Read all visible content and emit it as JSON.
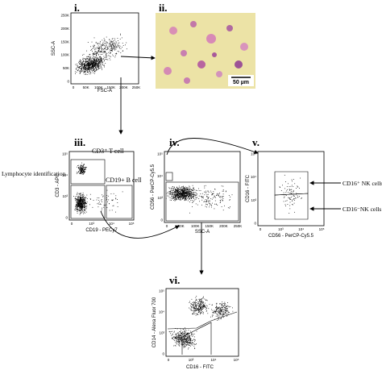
{
  "side_label": "Lymphocyte identification",
  "panels": [
    {
      "label": "i.",
      "x_axis": "FSC-A",
      "y_axis": "SSC-A",
      "x_ticks": [
        "0",
        "50K",
        "100K",
        "150K",
        "200K",
        "250K"
      ],
      "y_ticks": [
        "0",
        "50K",
        "100K",
        "150K",
        "200K",
        "250K"
      ]
    },
    {
      "label": "ii.",
      "scale_bar": "50 µm"
    },
    {
      "label": "iii.",
      "x_axis": "CD19 - PECy7",
      "y_axis": "CD3 - APC",
      "x_ticks": [
        "0",
        "10³",
        "10⁴",
        "10⁵"
      ],
      "y_ticks": [
        "0",
        "10³",
        "10⁴",
        "10⁵"
      ],
      "gates": [
        "CD3⁺ T cell",
        "CD19+ B cell"
      ]
    },
    {
      "label": "iv.",
      "x_axis": "SSC-A",
      "y_axis": "CD56 - PerCP-Cy5.5",
      "x_ticks": [
        "0",
        "50K",
        "100K",
        "150K",
        "200K",
        "250K"
      ],
      "y_ticks": [
        "0",
        "10³",
        "10⁴",
        "10⁵"
      ]
    },
    {
      "label": "v.",
      "x_axis": "CD56 - PerCP-Cy5.5",
      "y_axis": "CD16 - FITC",
      "x_ticks": [
        "0",
        "10³",
        "10⁴",
        "10⁵"
      ],
      "y_ticks": [
        "0",
        "10³",
        "10⁴",
        "10⁵"
      ],
      "gates": [
        "CD16⁺ NK cells",
        "CD16⁻NK cells"
      ]
    },
    {
      "label": "vi.",
      "x_axis": "CD16 - FITC",
      "y_axis": "CD14 - Alexa Fluor 700",
      "x_ticks": [
        "0",
        "10³",
        "10⁴",
        "10⁵"
      ],
      "y_ticks": [
        "0",
        "10³",
        "10⁴",
        "10⁵"
      ]
    }
  ]
}
